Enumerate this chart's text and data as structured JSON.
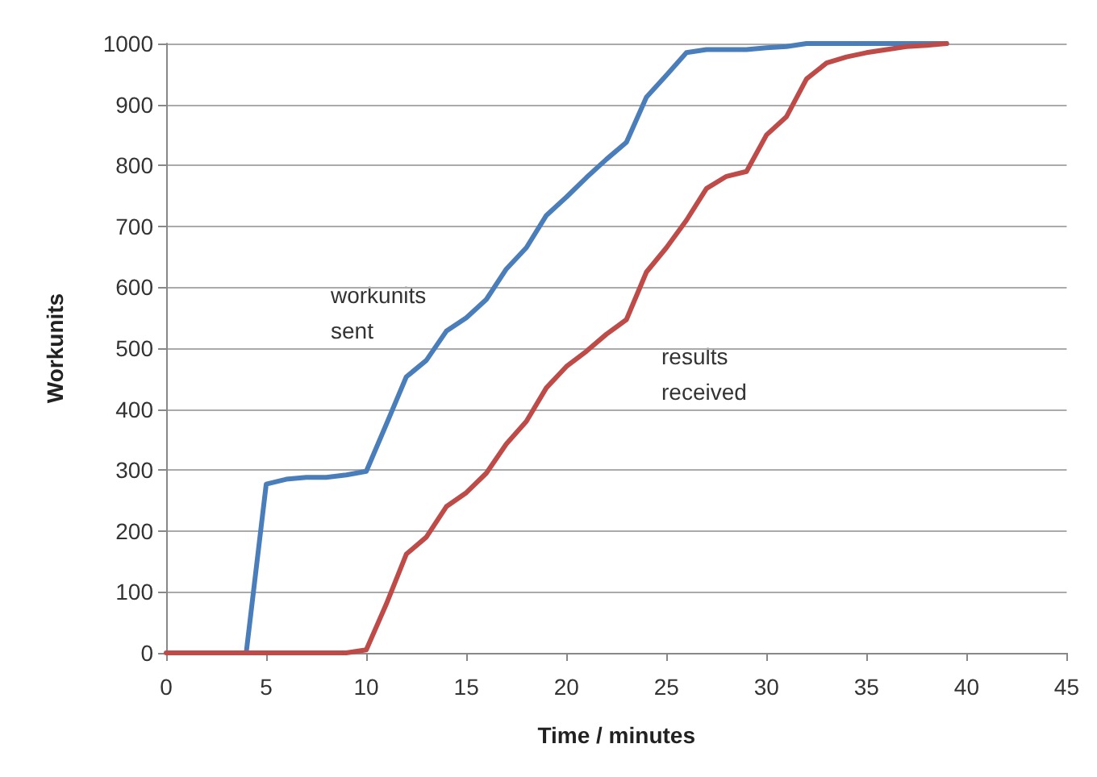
{
  "chart_data": {
    "type": "line",
    "xlabel": "Time / minutes",
    "ylabel": "Workunits",
    "x": [
      0,
      1,
      2,
      3,
      4,
      5,
      6,
      7,
      8,
      9,
      10,
      11,
      12,
      13,
      14,
      15,
      16,
      17,
      18,
      19,
      20,
      21,
      22,
      23,
      24,
      25,
      26,
      27,
      28,
      29,
      30,
      31,
      32,
      33,
      34,
      35,
      36,
      37,
      38,
      39
    ],
    "series": [
      {
        "color": "#4a7ebb",
        "values": [
          null,
          null,
          null,
          null,
          0,
          277,
          285,
          288,
          288,
          292,
          298,
          375,
          453,
          480,
          528,
          550,
          580,
          630,
          665,
          718,
          748,
          780,
          810,
          838,
          912,
          948,
          985,
          990,
          990,
          990,
          993,
          995,
          1000,
          1000,
          1000,
          1000,
          1000,
          1000,
          1000,
          1000
        ]
      },
      {
        "color": "#be4b48",
        "values": [
          0,
          0,
          0,
          0,
          0,
          0,
          0,
          0,
          0,
          0,
          5,
          80,
          162,
          190,
          240,
          263,
          295,
          343,
          380,
          435,
          470,
          495,
          523,
          547,
          625,
          665,
          710,
          762,
          782,
          790,
          850,
          880,
          942,
          968,
          978,
          985,
          990,
          995,
          997,
          1000
        ]
      }
    ],
    "annotations": [
      "workunits\nsent",
      "results\nreceived"
    ],
    "xlim": [
      0,
      45
    ],
    "xticks": [
      0,
      5,
      10,
      15,
      20,
      25,
      30,
      35,
      40,
      45
    ],
    "ylim": [
      0,
      1000
    ],
    "yticks": [
      0,
      100,
      200,
      300,
      400,
      500,
      600,
      700,
      800,
      900,
      1000
    ],
    "grid": "y",
    "marker": "none",
    "line_style": "solid"
  }
}
